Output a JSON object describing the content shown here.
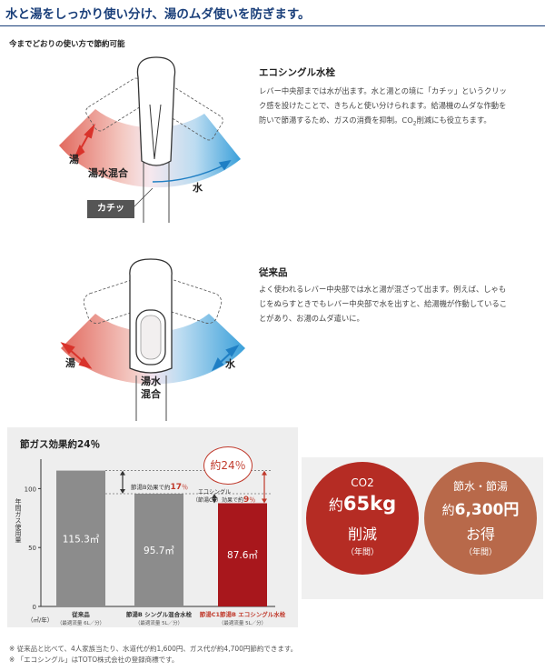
{
  "header": {
    "title": "水と湯をしっかり使い分け、湯のムダ使いを防ぎます。",
    "subtitle": "今までどおりの使い方で節約可能"
  },
  "eco_faucet": {
    "name": "エコシングル水栓",
    "description_lines": [
      "レバー中央部までは水が出ます。水と湯との境に「カチッ」というクリッ",
      "ク感を設けたことで、きちんと使い分けられます。給湯機のムダな作動を",
      "防いで節湯するため、ガスの消費を抑制。"
    ],
    "co2_text": "CO",
    "co2_sub": "2",
    "co2_suffix": "削減にも役立ちます。",
    "label_hot": "湯",
    "label_mix": "湯水混合",
    "label_water": "水",
    "label_click": "カチッ"
  },
  "conventional": {
    "name": "従来品",
    "description_lines": [
      "よく使われるレバー中央部では水と湯が混ざって出ます。例えば、しゃも",
      "じをぬらすときでもレバー中央部で水を出すと、給湯機が作動しているこ",
      "とがあり、お湯のムダ遣いに。"
    ],
    "label_hot": "湯",
    "label_mix_1": "湯水",
    "label_mix_2": "混合",
    "label_water": "水"
  },
  "chart": {
    "title": "節ガス効果約24％",
    "ylabel": "年間ガス使用量",
    "unit_label": "（㎥/年）",
    "ticks": [
      "0",
      "50",
      "100"
    ],
    "saving_17": "節湯B効果で約",
    "saving_17_value": "17",
    "saving_17_unit": "％",
    "saving_9_line1": "エコシングル",
    "saving_9_line2": "（節湯C1）効果で約",
    "saving_9_value": "9",
    "saving_9_unit": "％",
    "total_bubble": "約24％",
    "bar_labels": [
      {
        "name": "従来品",
        "note": "（最適流量 6L／分）"
      },
      {
        "name": "節湯B シングル混合水栓",
        "note": "（最適流量 5L／分）"
      },
      {
        "name": "節湯C1節湯B エコシングル水栓",
        "note": "（最適流量 5L／分）"
      }
    ],
    "value_labels": [
      "115.3㎥",
      "95.7㎥",
      "87.6㎥"
    ],
    "colors": {
      "gray": "#8c8c8c",
      "red": "#a8171c",
      "accent": "#c0392b"
    }
  },
  "chart_data": {
    "type": "bar",
    "title": "節ガス効果約24％",
    "ylabel": "年間ガス使用量",
    "categories": [
      "従来品",
      "節湯B シングル混合水栓",
      "節湯C1節湯B エコシングル水栓"
    ],
    "values": [
      115.3,
      95.7,
      87.6
    ],
    "unit": "㎥/年",
    "ylim": [
      0,
      125
    ]
  },
  "stats": {
    "co2": {
      "top": "CO2",
      "main_prefix": "約",
      "main_value": "65kg",
      "sub": "削減",
      "period": "（年間）",
      "color": "#b52c24"
    },
    "water": {
      "top": "節水・節湯",
      "main_prefix": "約",
      "main_value": "6,300円",
      "sub": "お得",
      "period": "（年間）",
      "color": "#b8694a"
    }
  },
  "notes": [
    "※ 従来品と比べて、4人家族当たり、水道代が約1,600円、ガス代が約4,700円節約できます。",
    "※ 「エコシングル」はTOTO株式会社の登録商標です。"
  ]
}
